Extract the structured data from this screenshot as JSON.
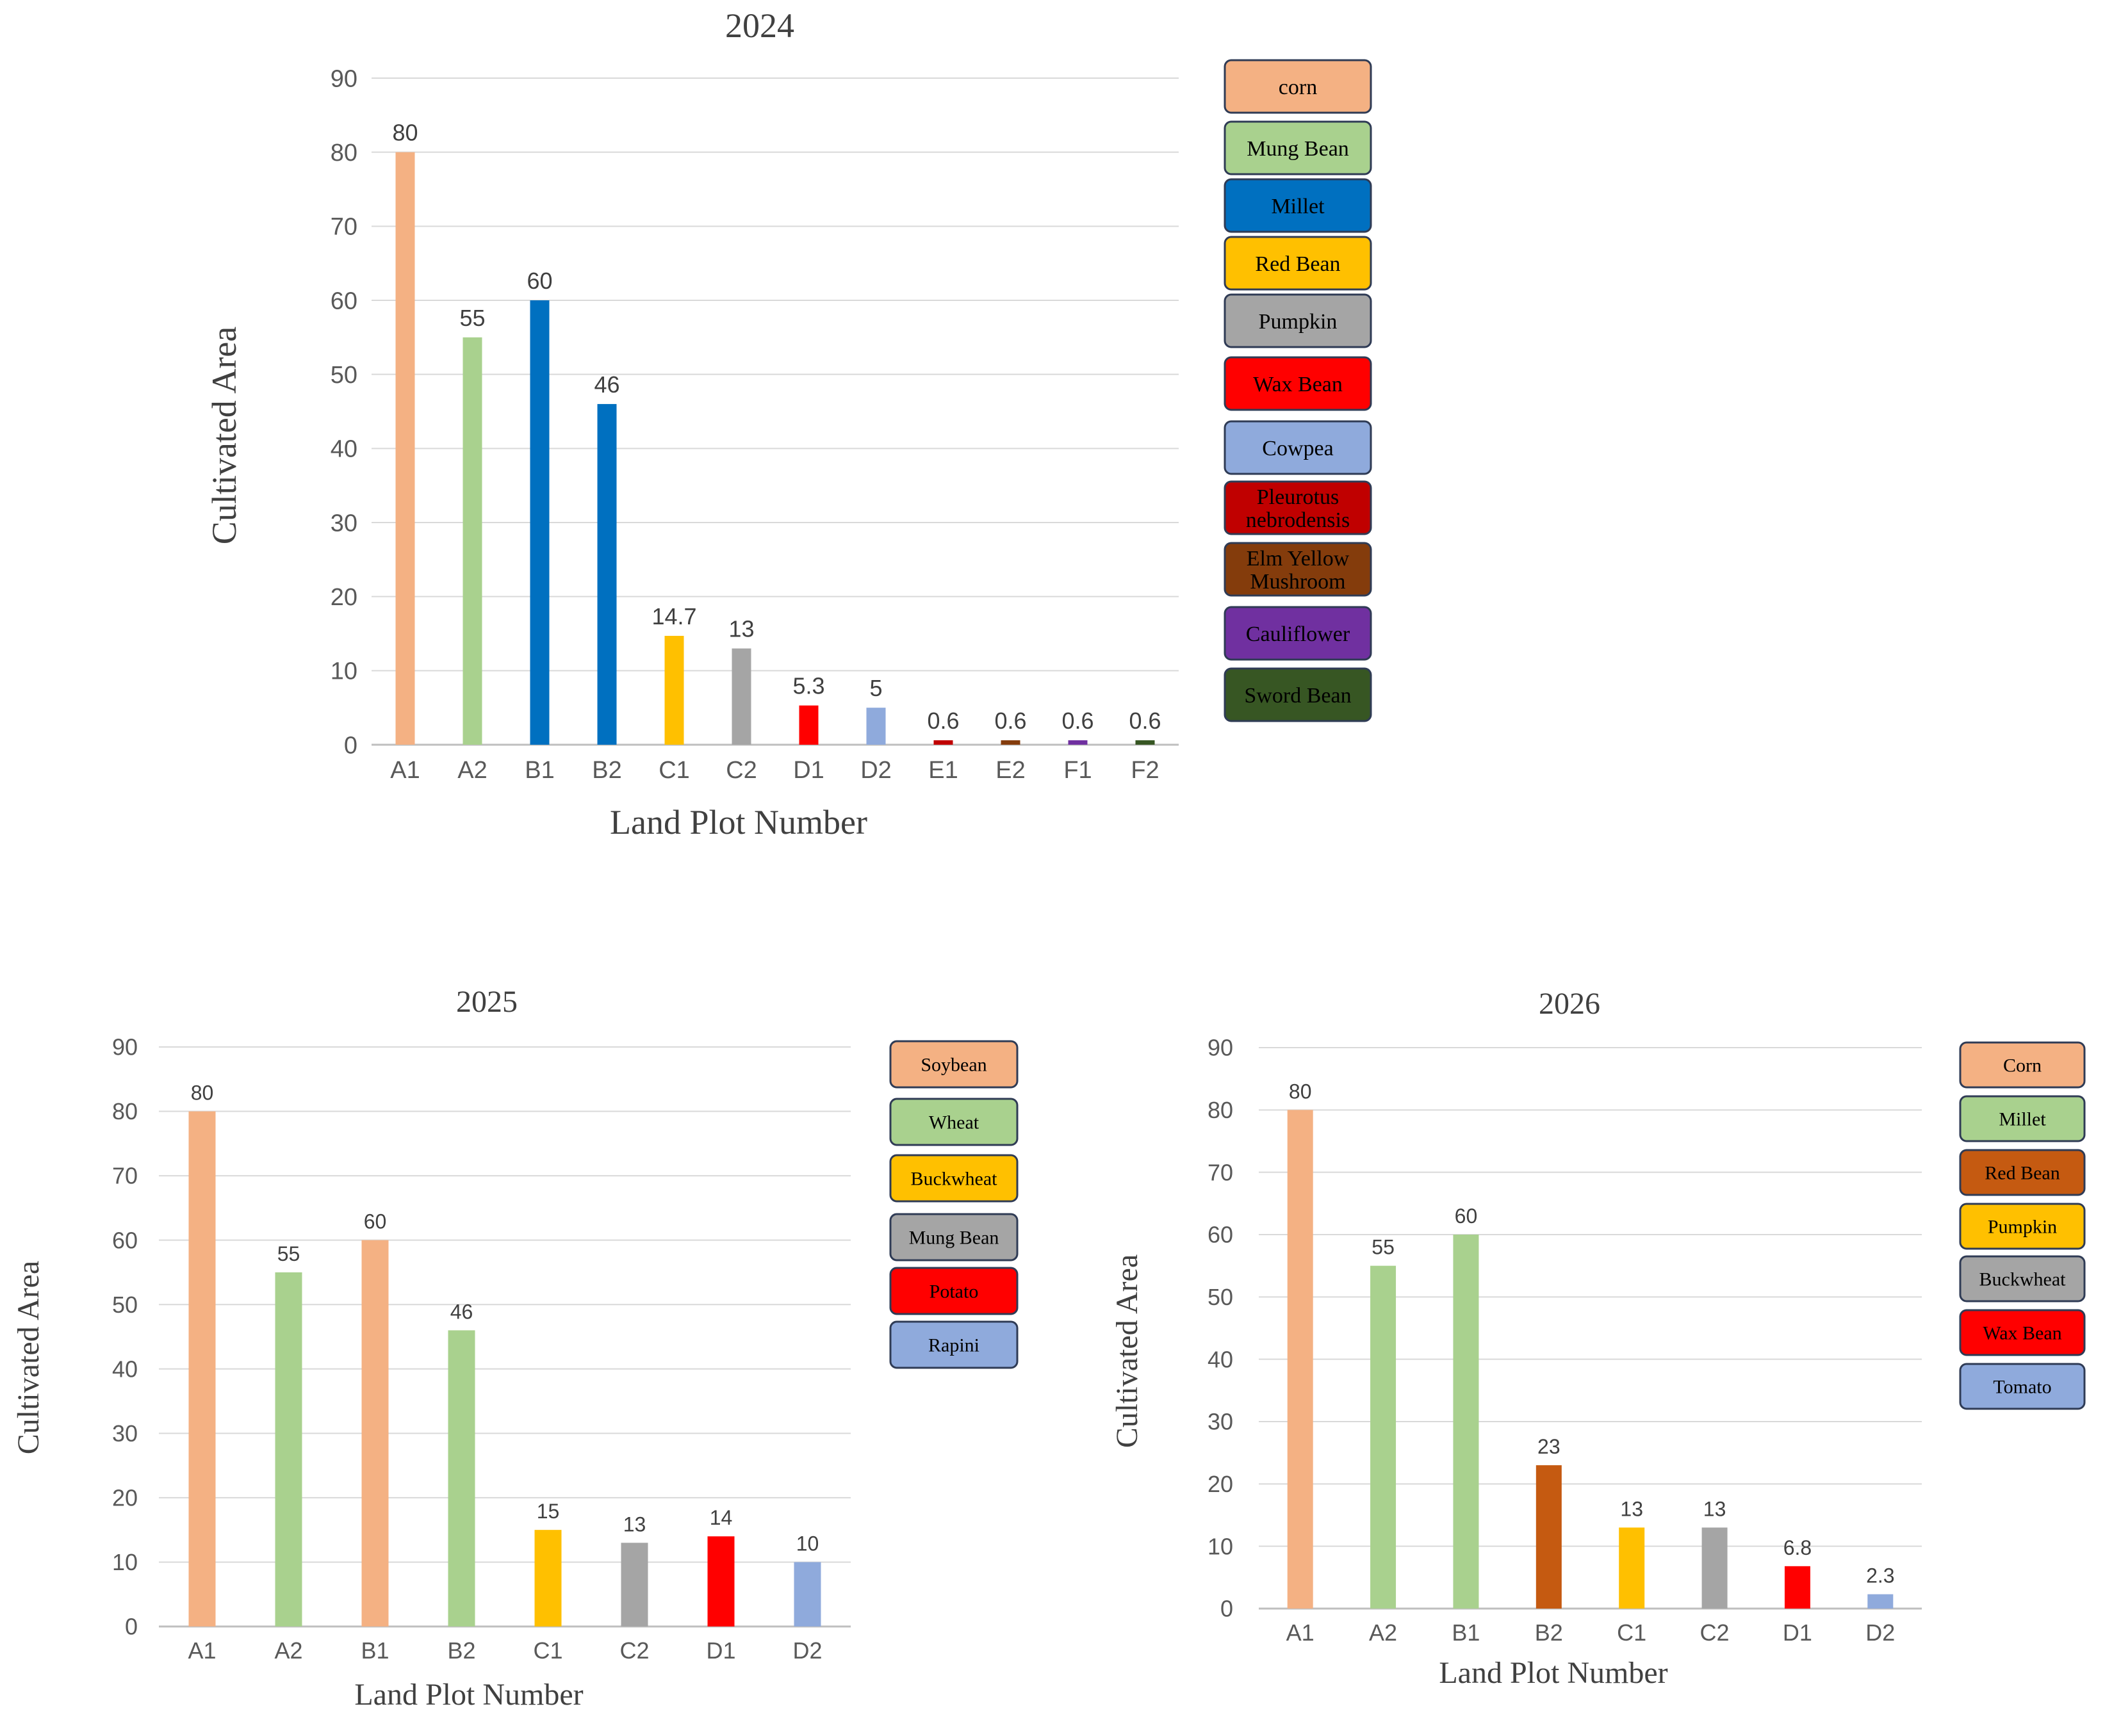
{
  "chart_data": [
    {
      "type": "bar",
      "title": "2024",
      "xlabel": "Land Plot Number",
      "ylabel": "Cultivated Area",
      "ylim": [
        0,
        90
      ],
      "yticks": [
        "0",
        "10",
        "20",
        "30",
        "40",
        "50",
        "60",
        "70",
        "80",
        "90"
      ],
      "grid": true,
      "legend_position": "right",
      "categories": [
        "A1",
        "A2",
        "B1",
        "B2",
        "C1",
        "C2",
        "D1",
        "D2",
        "E1",
        "E2",
        "F1",
        "F2"
      ],
      "values": [
        80,
        55,
        60,
        46,
        14.7,
        13,
        5.3,
        5,
        0.6,
        0.6,
        0.6,
        0.6
      ],
      "labels": [
        "80",
        "55",
        "60",
        "46",
        "14.7",
        "13",
        "5.3",
        "5",
        "0.6",
        "0.6",
        "0.6",
        "0.6"
      ],
      "bar_colors": [
        "#f4b183",
        "#a9d18e",
        "#0070c0",
        "#0070c0",
        "#ffc000",
        "#a5a5a5",
        "#ff0000",
        "#8faadc",
        "#c00000",
        "#843c0c",
        "#7030a0",
        "#375623"
      ],
      "legend": [
        {
          "label": "corn",
          "color": "#f4b183",
          "text_color": "#000000"
        },
        {
          "label": "Mung Bean",
          "color": "#a9d18e",
          "text_color": "#000000"
        },
        {
          "label": "Millet",
          "color": "#0070c0",
          "text_color": "#000000"
        },
        {
          "label": "Red Bean",
          "color": "#ffc000",
          "text_color": "#000000"
        },
        {
          "label": "Pumpkin",
          "color": "#a5a5a5",
          "text_color": "#000000"
        },
        {
          "label": "Wax Bean",
          "color": "#ff0000",
          "text_color": "#000000"
        },
        {
          "label": "Cowpea",
          "color": "#8faadc",
          "text_color": "#000000"
        },
        {
          "label": "Pleurotus nebrodensis",
          "color": "#c00000",
          "text_color": "#000000"
        },
        {
          "label": "Elm Yellow Mushroom",
          "color": "#843c0c",
          "text_color": "#000000"
        },
        {
          "label": "Cauliflower",
          "color": "#7030a0",
          "text_color": "#000000"
        },
        {
          "label": "Sword Bean",
          "color": "#375623",
          "text_color": "#000000"
        }
      ]
    },
    {
      "type": "bar",
      "title": "2025",
      "xlabel": "Land Plot Number",
      "ylabel": "Cultivated Area",
      "ylim": [
        0,
        90
      ],
      "yticks": [
        "0",
        "10",
        "20",
        "30",
        "40",
        "50",
        "60",
        "70",
        "80",
        "90"
      ],
      "grid": true,
      "legend_position": "right",
      "categories": [
        "A1",
        "A2",
        "B1",
        "B2",
        "C1",
        "C2",
        "D1",
        "D2"
      ],
      "values": [
        80,
        55,
        60,
        46,
        15,
        13,
        14,
        10
      ],
      "labels": [
        "80",
        "55",
        "60",
        "46",
        "15",
        "13",
        "14",
        "10"
      ],
      "bar_colors": [
        "#f4b183",
        "#a9d18e",
        "#f4b183",
        "#a9d18e",
        "#ffc000",
        "#a5a5a5",
        "#ff0000",
        "#8faadc"
      ],
      "legend": [
        {
          "label": "Soybean",
          "color": "#f4b183",
          "text_color": "#000000"
        },
        {
          "label": "Wheat",
          "color": "#a9d18e",
          "text_color": "#000000"
        },
        {
          "label": "Buckwheat",
          "color": "#ffc000",
          "text_color": "#000000"
        },
        {
          "label": "Mung Bean",
          "color": "#a5a5a5",
          "text_color": "#000000"
        },
        {
          "label": "Potato",
          "color": "#ff0000",
          "text_color": "#000000"
        },
        {
          "label": "Rapini",
          "color": "#8faadc",
          "text_color": "#000000"
        }
      ]
    },
    {
      "type": "bar",
      "title": "2026",
      "xlabel": "Land Plot Number",
      "ylabel": "Cultivated Area",
      "ylim": [
        0,
        90
      ],
      "yticks": [
        "0",
        "10",
        "20",
        "30",
        "40",
        "50",
        "60",
        "70",
        "80",
        "90"
      ],
      "grid": true,
      "legend_position": "right",
      "categories": [
        "A1",
        "A2",
        "B1",
        "B2",
        "C1",
        "C2",
        "D1",
        "D2"
      ],
      "values": [
        80,
        55,
        60,
        23,
        13,
        13,
        6.8,
        2.3
      ],
      "labels": [
        "80",
        "55",
        "60",
        "23",
        "13",
        "13",
        "6.8",
        "2.3"
      ],
      "bar_colors": [
        "#f4b183",
        "#a9d18e",
        "#a9d18e",
        "#c55a11",
        "#ffc000",
        "#a5a5a5",
        "#ff0000",
        "#8faadc"
      ],
      "legend": [
        {
          "label": "Corn",
          "color": "#f4b183",
          "text_color": "#000000"
        },
        {
          "label": "Millet",
          "color": "#a9d18e",
          "text_color": "#000000"
        },
        {
          "label": "Red Bean",
          "color": "#c55a11",
          "text_color": "#000000"
        },
        {
          "label": "Pumpkin",
          "color": "#ffc000",
          "text_color": "#000000"
        },
        {
          "label": "Buckwheat",
          "color": "#a5a5a5",
          "text_color": "#000000"
        },
        {
          "label": "Wax Bean",
          "color": "#ff0000",
          "text_color": "#000000"
        },
        {
          "label": "Tomato",
          "color": "#8faadc",
          "text_color": "#000000"
        }
      ]
    }
  ]
}
